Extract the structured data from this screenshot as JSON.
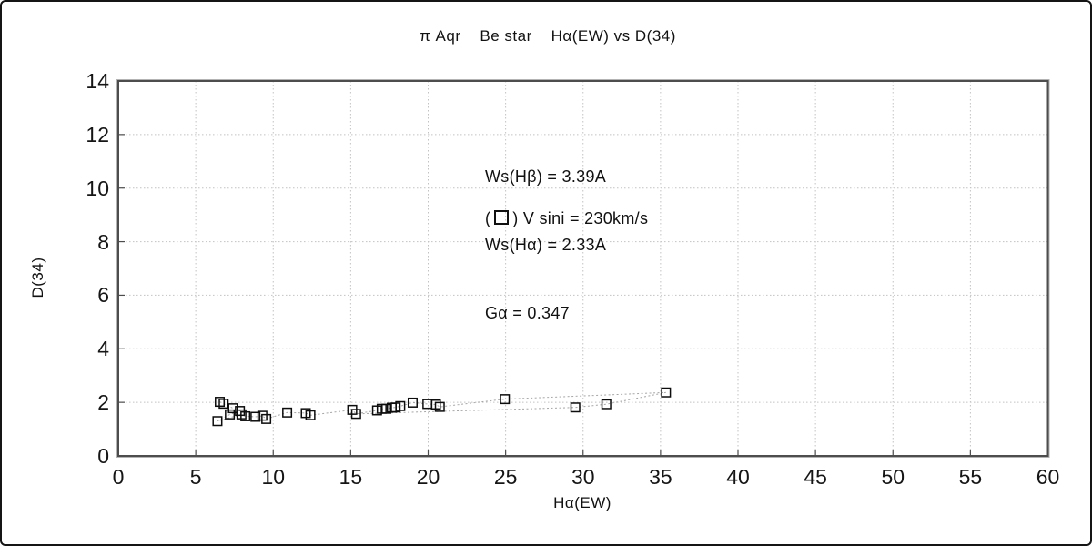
{
  "title": "π Aqr    Be star    Hα(EW) vs D(34)",
  "annotations": {
    "lines": [
      "Ws(Hβ) = 3.39A",
      "Ws(Hα) = 2.33A",
      "Gα = 0.347"
    ]
  },
  "legend": {
    "prefix": "(",
    "text": ") V sini = 230km/s",
    "marker": "open-square"
  },
  "chart_data": {
    "type": "scatter",
    "title": "π Aqr Be star Hα(EW) vs D(34)",
    "xlabel": "Hα(EW)",
    "ylabel": "D(34)",
    "xlim": [
      0,
      60
    ],
    "ylim": [
      0,
      14
    ],
    "xticks": [
      0,
      5,
      10,
      15,
      20,
      25,
      30,
      35,
      40,
      45,
      50,
      55,
      60
    ],
    "yticks": [
      0,
      2,
      4,
      6,
      8,
      10,
      12,
      14
    ],
    "grid": "dotted, both axes, at every tick",
    "legend_position": "inside top, text annotation",
    "marker": "open-square",
    "line_style": "thin dotted gray connecting points in time order",
    "points": [
      [
        6.55,
        2.02
      ],
      [
        6.8,
        1.95
      ],
      [
        7.4,
        1.78
      ],
      [
        7.85,
        1.68
      ],
      [
        7.2,
        1.55
      ],
      [
        6.4,
        1.3
      ],
      [
        7.95,
        1.55
      ],
      [
        8.2,
        1.48
      ],
      [
        8.85,
        1.46
      ],
      [
        9.3,
        1.5
      ],
      [
        9.55,
        1.38
      ],
      [
        10.9,
        1.62
      ],
      [
        12.1,
        1.6
      ],
      [
        12.4,
        1.52
      ],
      [
        15.1,
        1.72
      ],
      [
        15.35,
        1.57
      ],
      [
        16.7,
        1.7
      ],
      [
        17.0,
        1.76
      ],
      [
        17.3,
        1.76
      ],
      [
        17.65,
        1.8
      ],
      [
        17.9,
        1.81
      ],
      [
        18.2,
        1.86
      ],
      [
        19.0,
        1.99
      ],
      [
        19.95,
        1.94
      ],
      [
        20.5,
        1.92
      ],
      [
        20.75,
        1.83
      ],
      [
        24.95,
        2.12
      ],
      [
        35.35,
        2.37
      ],
      [
        31.5,
        1.93
      ],
      [
        29.5,
        1.81
      ]
    ],
    "path_indices": [
      0,
      1,
      2,
      3,
      4,
      5,
      6,
      7,
      8,
      9,
      10,
      11,
      12,
      13,
      14,
      15,
      16,
      17,
      18,
      19,
      20,
      21,
      22,
      23,
      24,
      25,
      26,
      27,
      28,
      29,
      15
    ],
    "colors": {
      "frame": "#4d4d4d",
      "frame_shadow": "#b3b3b3",
      "grid": "#c2c2c2",
      "marker": "#0d0d0d",
      "line": "#a6a6a6",
      "text": "#151515",
      "background": "#ffffff"
    }
  }
}
